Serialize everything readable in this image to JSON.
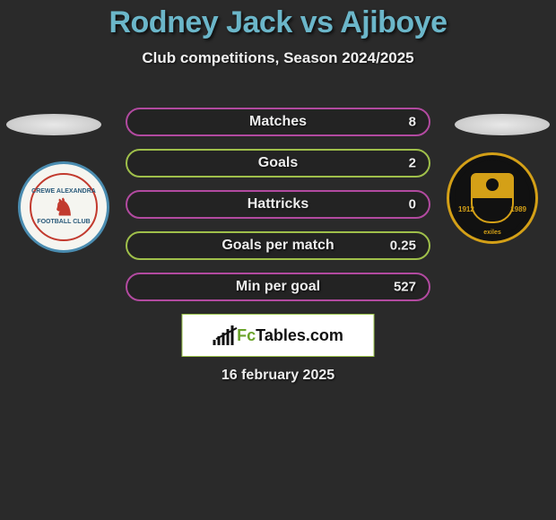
{
  "title": "Rodney Jack vs Ajiboye",
  "title_color": "#6bb6c9",
  "subtitle": "Club competitions, Season 2024/2025",
  "left_crest": {
    "top_text": "CREWE ALEXANDRA",
    "bottom_text": "FOOTBALL CLUB",
    "ring_color": "#c23a2e",
    "border_color": "#4a8cb0"
  },
  "right_crest": {
    "year_left": "1912",
    "year_right": "1989",
    "bottom_text": "exiles",
    "accent_color": "#d4a017"
  },
  "stats": [
    {
      "label": "Matches",
      "value": "8",
      "border_color": "#b24aa0"
    },
    {
      "label": "Goals",
      "value": "2",
      "border_color": "#9fbf4a"
    },
    {
      "label": "Hattricks",
      "value": "0",
      "border_color": "#b24aa0"
    },
    {
      "label": "Goals per match",
      "value": "0.25",
      "border_color": "#9fbf4a"
    },
    {
      "label": "Min per goal",
      "value": "527",
      "border_color": "#b24aa0"
    }
  ],
  "logo": {
    "text_prefix": "Fc",
    "text_suffix": "Tables.com",
    "green": "#6aa32a",
    "border": "#9ac24a"
  },
  "date": "16 february 2025",
  "background_color": "#2a2a2a"
}
